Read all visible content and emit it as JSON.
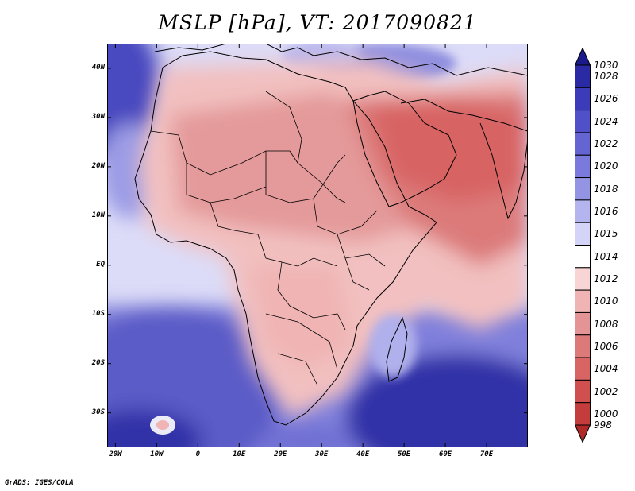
{
  "title": "MSLP [hPa], VT: 2017090821",
  "credit": "GrADS: IGES/COLA",
  "map": {
    "lat_labels": [
      "40N",
      "30N",
      "20N",
      "10N",
      "EQ",
      "10S",
      "20S",
      "30S"
    ],
    "lat_values": [
      40,
      30,
      20,
      10,
      0,
      -10,
      -20,
      -30
    ],
    "lon_labels": [
      "20W",
      "10W",
      "0",
      "10E",
      "20E",
      "30E",
      "40E",
      "50E",
      "60E",
      "70E"
    ],
    "lon_values": [
      -20,
      -10,
      0,
      10,
      20,
      30,
      40,
      50,
      60,
      70
    ],
    "extent": {
      "lon_min": -22,
      "lon_max": 80,
      "lat_min": -37,
      "lat_max": 45
    }
  },
  "colorbar": {
    "labels": [
      "1030",
      "1028",
      "1026",
      "1024",
      "1022",
      "1020",
      "1018",
      "1016",
      "1015",
      "1014",
      "1012",
      "1010",
      "1008",
      "1006",
      "1004",
      "1002",
      "1000",
      "998"
    ],
    "colors": [
      "#1a1a8c",
      "#2a2aa5",
      "#3c3cba",
      "#5050c8",
      "#6464d2",
      "#7a7adc",
      "#9494e4",
      "#b4b4ee",
      "#d4d4f8",
      "#ffffff",
      "#f8d4d4",
      "#f0b4b4",
      "#e49494",
      "#dc7a7a",
      "#d86464",
      "#d05050",
      "#c43c3c",
      "#b02828"
    ]
  }
}
